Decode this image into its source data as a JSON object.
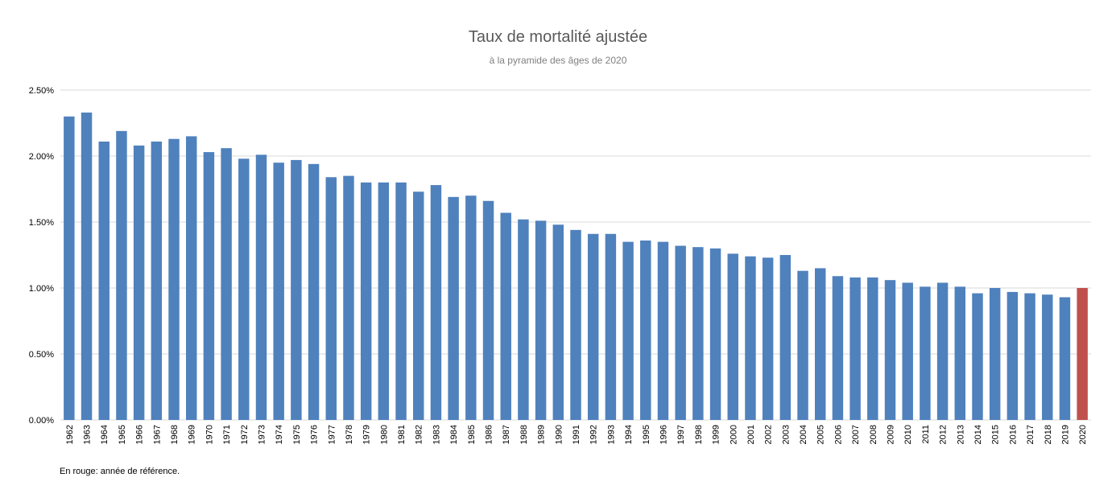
{
  "chart_data": {
    "type": "bar",
    "title": "Taux de mortalité ajustée",
    "subtitle": "à la pyramide des âges de 2020",
    "xlabel": "",
    "ylabel": "",
    "ylim": [
      0,
      2.5
    ],
    "y_ticks": [
      "0.00%",
      "0.50%",
      "1.00%",
      "1.50%",
      "2.00%",
      "2.50%"
    ],
    "grid": true,
    "categories": [
      "1962",
      "1963",
      "1964",
      "1965",
      "1966",
      "1967",
      "1968",
      "1969",
      "1970",
      "1971",
      "1972",
      "1973",
      "1974",
      "1975",
      "1976",
      "1977",
      "1978",
      "1979",
      "1980",
      "1981",
      "1982",
      "1983",
      "1984",
      "1985",
      "1986",
      "1987",
      "1988",
      "1989",
      "1990",
      "1991",
      "1992",
      "1993",
      "1994",
      "1995",
      "1996",
      "1997",
      "1998",
      "1999",
      "2000",
      "2001",
      "2002",
      "2003",
      "2004",
      "2005",
      "2006",
      "2007",
      "2008",
      "2009",
      "2010",
      "2011",
      "2012",
      "2013",
      "2014",
      "2015",
      "2016",
      "2017",
      "2018",
      "2019",
      "2020"
    ],
    "values": [
      2.3,
      2.33,
      2.11,
      2.19,
      2.08,
      2.11,
      2.13,
      2.15,
      2.03,
      2.06,
      1.98,
      2.01,
      1.95,
      1.97,
      1.94,
      1.84,
      1.85,
      1.8,
      1.8,
      1.8,
      1.73,
      1.78,
      1.69,
      1.7,
      1.66,
      1.57,
      1.52,
      1.51,
      1.48,
      1.44,
      1.41,
      1.41,
      1.35,
      1.36,
      1.35,
      1.32,
      1.31,
      1.3,
      1.26,
      1.24,
      1.23,
      1.25,
      1.13,
      1.15,
      1.09,
      1.08,
      1.08,
      1.06,
      1.04,
      1.01,
      1.04,
      1.01,
      0.96,
      1.0,
      0.97,
      0.96,
      0.95,
      0.93,
      1.0
    ],
    "colors": {
      "default": "#4f81bd",
      "highlight": "#c0504d"
    },
    "highlight_category": "2020",
    "note": "En rouge: année de référence."
  }
}
